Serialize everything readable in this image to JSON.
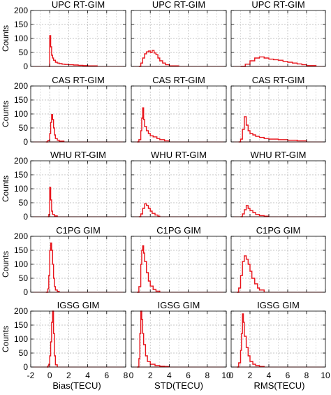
{
  "figure": {
    "y_axis_label": "Counts",
    "x_axis_labels": [
      "Bias(TECU)",
      "STD(TECU)",
      "RMS(TECU)"
    ],
    "line_color": "#e8141b",
    "grid": true
  },
  "chart_data": {
    "type": "histogram-grid",
    "rows": 5,
    "columns": 3,
    "row_titles": [
      "UPC RT-GIM",
      "CAS RT-GIM",
      "WHU RT-GIM",
      "C1PG GIM",
      "IGSG GIM"
    ],
    "column_xlabels": [
      "Bias(TECU)",
      "STD(TECU)",
      "RMS(TECU)"
    ],
    "ylabel": "Counts",
    "ylim": [
      0,
      200
    ],
    "yticks": [
      0,
      50,
      100,
      150,
      200
    ],
    "xlims": [
      [
        -2,
        8
      ],
      [
        0,
        10
      ],
      [
        0,
        10
      ]
    ],
    "xticks": [
      [
        -2,
        0,
        2,
        4,
        6,
        8
      ],
      [
        0,
        2,
        4,
        6,
        8,
        10
      ],
      [
        0,
        2,
        4,
        6,
        8,
        10
      ]
    ],
    "xtick_labels": [
      [
        "-2",
        "0",
        "2",
        "4",
        "6",
        "8"
      ],
      [
        "0",
        "2",
        "4",
        "6",
        "8",
        "10"
      ],
      [
        "0",
        "2",
        "4",
        "6",
        "8",
        "10"
      ]
    ],
    "panels": [
      {
        "row": 0,
        "col": 0,
        "title": "UPC RT-GIM",
        "x": [
          -0.1,
          0.0,
          0.1,
          0.2,
          0.3,
          0.4,
          0.6,
          0.8,
          1.0,
          1.3,
          1.6,
          2.0,
          2.5,
          3.0,
          3.5,
          4.0,
          5.0
        ],
        "counts": [
          0,
          110,
          70,
          40,
          30,
          22,
          15,
          12,
          10,
          8,
          7,
          6,
          5,
          4,
          3,
          2,
          0
        ]
      },
      {
        "row": 0,
        "col": 1,
        "title": "UPC RT-GIM",
        "x": [
          0.8,
          1.0,
          1.2,
          1.4,
          1.6,
          1.8,
          2.0,
          2.2,
          2.4,
          2.6,
          2.8,
          3.0,
          3.3,
          3.6,
          4.0,
          5.0
        ],
        "counts": [
          0,
          12,
          30,
          45,
          52,
          55,
          50,
          57,
          48,
          42,
          30,
          20,
          12,
          6,
          2,
          0
        ]
      },
      {
        "row": 0,
        "col": 2,
        "title": "UPC RT-GIM",
        "x": [
          1.0,
          1.5,
          2.0,
          2.5,
          3.0,
          3.5,
          4.0,
          4.5,
          5.0,
          5.5,
          6.0,
          6.5,
          7.0,
          7.5,
          8.0,
          9.0
        ],
        "counts": [
          0,
          8,
          20,
          30,
          34,
          30,
          26,
          24,
          22,
          18,
          15,
          12,
          9,
          6,
          3,
          0
        ]
      },
      {
        "row": 1,
        "col": 0,
        "title": "CAS RT-GIM",
        "x": [
          -0.4,
          -0.2,
          0.0,
          0.1,
          0.2,
          0.3,
          0.4,
          0.5,
          0.6,
          0.8,
          1.0,
          1.5
        ],
        "counts": [
          0,
          5,
          30,
          70,
          98,
          80,
          50,
          25,
          12,
          6,
          3,
          0
        ]
      },
      {
        "row": 1,
        "col": 1,
        "title": "CAS RT-GIM",
        "x": [
          0.6,
          0.8,
          1.0,
          1.1,
          1.2,
          1.3,
          1.4,
          1.6,
          1.8,
          2.0,
          2.3,
          2.7,
          3.0,
          3.5,
          4.0
        ],
        "counts": [
          0,
          8,
          40,
          85,
          122,
          80,
          55,
          40,
          30,
          22,
          18,
          12,
          8,
          4,
          0
        ]
      },
      {
        "row": 1,
        "col": 2,
        "title": "CAS RT-GIM",
        "x": [
          0.8,
          1.0,
          1.2,
          1.4,
          1.6,
          1.8,
          2.0,
          2.3,
          2.6,
          3.0,
          3.5,
          4.0,
          5.0,
          6.0,
          7.0,
          8.0
        ],
        "counts": [
          0,
          10,
          45,
          90,
          60,
          40,
          30,
          25,
          20,
          16,
          12,
          10,
          8,
          6,
          4,
          0
        ]
      },
      {
        "row": 2,
        "col": 0,
        "title": "WHU RT-GIM",
        "x": [
          -0.2,
          -0.1,
          0.0,
          0.1,
          0.2,
          0.3,
          0.5,
          0.8
        ],
        "counts": [
          0,
          8,
          105,
          60,
          20,
          8,
          3,
          0
        ]
      },
      {
        "row": 2,
        "col": 1,
        "title": "WHU RT-GIM",
        "x": [
          0.8,
          1.0,
          1.2,
          1.4,
          1.6,
          1.8,
          2.0,
          2.2,
          2.5,
          2.8,
          3.0
        ],
        "counts": [
          0,
          10,
          30,
          46,
          40,
          30,
          20,
          12,
          6,
          2,
          0
        ]
      },
      {
        "row": 2,
        "col": 2,
        "title": "WHU RT-GIM",
        "x": [
          1.0,
          1.2,
          1.4,
          1.6,
          1.8,
          2.0,
          2.3,
          2.6,
          3.0,
          3.5,
          4.0
        ],
        "counts": [
          0,
          10,
          25,
          40,
          30,
          22,
          15,
          8,
          4,
          2,
          0
        ]
      },
      {
        "row": 3,
        "col": 0,
        "title": "C1PG GIM",
        "x": [
          -0.4,
          -0.2,
          -0.1,
          0.0,
          0.1,
          0.2,
          0.3,
          0.4,
          0.5,
          0.6,
          0.8,
          1.0
        ],
        "counts": [
          0,
          12,
          60,
          150,
          176,
          150,
          100,
          50,
          20,
          8,
          3,
          0
        ]
      },
      {
        "row": 3,
        "col": 1,
        "title": "C1PG GIM",
        "x": [
          0.6,
          0.8,
          1.0,
          1.1,
          1.2,
          1.3,
          1.4,
          1.6,
          1.8,
          2.0,
          2.3,
          2.6,
          3.0
        ],
        "counts": [
          0,
          20,
          100,
          150,
          166,
          140,
          110,
          70,
          40,
          22,
          10,
          4,
          0
        ]
      },
      {
        "row": 3,
        "col": 2,
        "title": "C1PG GIM",
        "x": [
          0.6,
          0.8,
          1.0,
          1.2,
          1.4,
          1.6,
          1.8,
          2.0,
          2.2,
          2.5,
          2.8,
          3.0,
          3.5
        ],
        "counts": [
          0,
          15,
          60,
          110,
          130,
          118,
          100,
          75,
          50,
          30,
          15,
          8,
          0
        ]
      },
      {
        "row": 4,
        "col": 0,
        "title": "IGSG GIM",
        "x": [
          -0.3,
          -0.2,
          -0.1,
          0.0,
          0.1,
          0.2,
          0.3,
          0.4,
          0.5,
          0.6,
          0.8
        ],
        "counts": [
          0,
          4,
          10,
          40,
          90,
          160,
          200,
          120,
          40,
          8,
          0
        ]
      },
      {
        "row": 4,
        "col": 1,
        "title": "IGSG GIM",
        "x": [
          0.6,
          0.8,
          0.9,
          1.0,
          1.1,
          1.2,
          1.3,
          1.5,
          1.7,
          2.0,
          2.5,
          3.0,
          3.5,
          4.0
        ],
        "counts": [
          0,
          30,
          120,
          200,
          170,
          120,
          80,
          40,
          20,
          10,
          5,
          3,
          2,
          0
        ]
      },
      {
        "row": 4,
        "col": 2,
        "title": "IGSG GIM",
        "x": [
          0.6,
          0.8,
          1.0,
          1.1,
          1.2,
          1.3,
          1.4,
          1.6,
          1.8,
          2.0,
          2.3,
          2.6,
          3.0,
          3.5
        ],
        "counts": [
          0,
          15,
          60,
          120,
          190,
          160,
          110,
          70,
          40,
          20,
          10,
          5,
          2,
          0
        ]
      }
    ]
  }
}
